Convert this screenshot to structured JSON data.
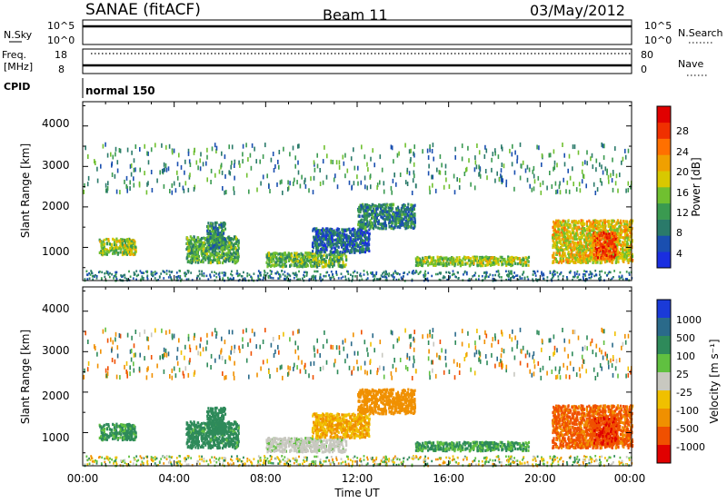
{
  "header": {
    "station": "SANAE (fitACF)",
    "beam": "Beam 11",
    "date": "03/May/2012"
  },
  "top_panels": {
    "nsky_label": "N.Sky",
    "nsky_ticks": [
      "10^5",
      "10^0"
    ],
    "nsearch_label": "N.Search",
    "nsearch_ticks": [
      "10^5",
      "10^0"
    ],
    "freq_label": "Freq.",
    "freq_unit": "[MHz]",
    "freq_ticks": [
      "18",
      "8"
    ],
    "nave_label": "Nave",
    "nave_ticks": [
      "80",
      "0"
    ],
    "cpid_label": "CPID",
    "cpid_value": "normal 150"
  },
  "axes": {
    "x_ticks": [
      "00:00",
      "04:00",
      "08:00",
      "12:00",
      "16:00",
      "20:00",
      "00:00"
    ],
    "x_label": "Time UT",
    "y_ticks": [
      "1000",
      "2000",
      "3000",
      "4000"
    ],
    "y_label": "Slant Range [km]",
    "y_range_km": [
      180,
      4600
    ],
    "x_range_hours": [
      0,
      24
    ]
  },
  "power_scale": {
    "label": "Power [dB]",
    "ticks": [
      "28",
      "24",
      "20",
      "16",
      "12",
      "8",
      "4"
    ],
    "colors": [
      "#1a2ee0",
      "#1a4fb0",
      "#2a7a6a",
      "#3a9a50",
      "#70c030",
      "#d8c800",
      "#f0a000",
      "#ff7000",
      "#f03000",
      "#e00000"
    ]
  },
  "velocity_scale": {
    "label": "Velocity [m s⁻¹]",
    "ticks": [
      "1000",
      "500",
      "100",
      "25",
      "-25",
      "-100",
      "-500",
      "-1000"
    ],
    "colors": [
      "#1a3ad8",
      "#2a6a8a",
      "#2e8a5a",
      "#60c040",
      "#c8c8c0",
      "#f0c000",
      "#f09000",
      "#f05000",
      "#e00000"
    ]
  },
  "chart_data": {
    "type": "heatmap",
    "title": "SANAE (fitACF) Beam 11 03/May/2012",
    "xlabel": "Time UT",
    "ylabel": "Slant Range [km]",
    "xlim_hours": [
      0,
      24
    ],
    "ylim_km": [
      180,
      4600
    ],
    "echo_regions": [
      {
        "t_start": 0.7,
        "t_end": 2.3,
        "range_start": 850,
        "range_end": 1250,
        "power_db": 14,
        "velocity": 120
      },
      {
        "t_start": 4.5,
        "t_end": 6.8,
        "range_start": 650,
        "range_end": 1300,
        "power_db": 11,
        "velocity": 150
      },
      {
        "t_start": 5.4,
        "t_end": 6.2,
        "range_start": 1000,
        "range_end": 1650,
        "power_db": 9,
        "velocity": 200
      },
      {
        "t_start": 8.0,
        "t_end": 11.5,
        "range_start": 550,
        "range_end": 900,
        "power_db": 12,
        "velocity": 20
      },
      {
        "t_start": 10.0,
        "t_end": 12.5,
        "range_start": 900,
        "range_end": 1500,
        "power_db": 6,
        "velocity": -100
      },
      {
        "t_start": 12.0,
        "t_end": 14.5,
        "range_start": 1500,
        "range_end": 2100,
        "power_db": 8,
        "velocity": -250
      },
      {
        "t_start": 14.5,
        "t_end": 19.5,
        "range_start": 580,
        "range_end": 800,
        "power_db": 14,
        "velocity": 110
      },
      {
        "t_start": 20.5,
        "t_end": 24.0,
        "range_start": 650,
        "range_end": 1700,
        "power_db": 17,
        "velocity": -600
      },
      {
        "t_start": 22.3,
        "t_end": 23.3,
        "range_start": 750,
        "range_end": 1400,
        "power_db": 24,
        "velocity": -900
      }
    ]
  }
}
